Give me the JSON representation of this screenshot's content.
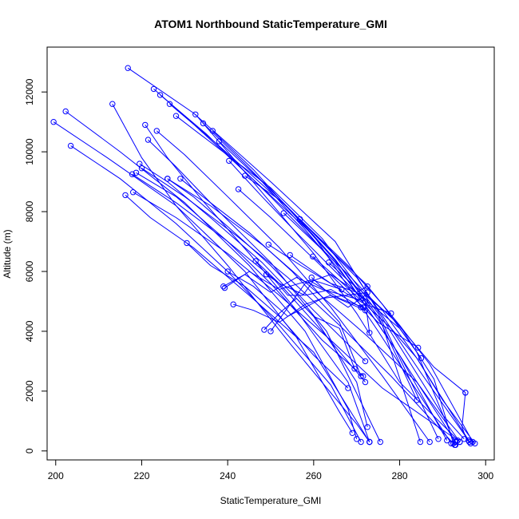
{
  "chart_data": {
    "type": "scatter",
    "title": "ATOM1 Northbound StaticTemperature_GMI",
    "xlabel": "StaticTemperature_GMI",
    "ylabel": "Altitude (m)",
    "xlim": [
      198,
      302
    ],
    "ylim": [
      -300,
      13500
    ],
    "xticks": [
      200,
      220,
      240,
      260,
      280,
      300
    ],
    "yticks": [
      0,
      2000,
      4000,
      6000,
      8000,
      10000,
      12000
    ],
    "grid": false,
    "legend": "none",
    "color": "#0000ff",
    "series": [
      {
        "x": [
          216.8,
          232,
          250,
          265,
          280,
          290,
          295
        ],
        "y": [
          12800,
          11300,
          9000,
          7000,
          3500,
          1200,
          400
        ]
      },
      {
        "x": [
          222.8,
          230,
          245,
          260,
          275,
          292
        ],
        "y": [
          12100,
          11200,
          9200,
          7200,
          4000,
          250
        ]
      },
      {
        "x": [
          224.3,
          235,
          250,
          265,
          280,
          293
        ],
        "y": [
          11900,
          10600,
          8500,
          6300,
          3200,
          300
        ]
      },
      {
        "x": [
          226.5,
          238,
          255,
          270,
          285,
          296
        ],
        "y": [
          11600,
          10200,
          8000,
          5800,
          2600,
          350
        ]
      },
      {
        "x": [
          213.2,
          220,
          228,
          240,
          255,
          270,
          273
        ],
        "y": [
          11600,
          9800,
          8200,
          6200,
          3500,
          900,
          300
        ]
      },
      {
        "x": [
          202.3,
          215,
          230,
          245,
          258,
          268,
          270
        ],
        "y": [
          11350,
          10000,
          8300,
          6200,
          4000,
          1400,
          400
        ]
      },
      {
        "x": [
          199.5,
          212,
          228,
          244,
          256,
          266,
          269
        ],
        "y": [
          11000,
          9800,
          8200,
          6000,
          3800,
          1300,
          600
        ]
      },
      {
        "x": [
          203.5,
          215,
          228,
          240,
          252,
          264,
          271
        ],
        "y": [
          10200,
          9100,
          7600,
          6000,
          4200,
          2200,
          300
        ]
      },
      {
        "x": [
          216.2,
          222,
          232,
          245,
          260,
          273
        ],
        "y": [
          8550,
          7800,
          6800,
          5200,
          3300,
          300
        ]
      },
      {
        "x": [
          220.8,
          226,
          234,
          245,
          256,
          268,
          273
        ],
        "y": [
          10900,
          9800,
          8400,
          6600,
          4700,
          2300,
          300
        ]
      },
      {
        "x": [
          221.5,
          228,
          238,
          250,
          263,
          275.5
        ],
        "y": [
          10400,
          9500,
          8000,
          6300,
          4000,
          300
        ]
      },
      {
        "x": [
          234.3,
          244,
          255,
          265,
          275,
          284
        ],
        "y": [
          10950,
          9600,
          8000,
          6400,
          4500,
          1700
        ]
      },
      {
        "x": [
          236.5,
          246,
          256,
          266,
          276,
          284.8
        ],
        "y": [
          10700,
          9400,
          7800,
          6200,
          4200,
          300
        ]
      },
      {
        "x": [
          238,
          248,
          258,
          268,
          280,
          291
        ],
        "y": [
          10350,
          9000,
          7400,
          5700,
          3200,
          350
        ]
      },
      {
        "x": [
          242.5,
          250,
          258,
          266,
          275,
          284.3
        ],
        "y": [
          8750,
          7800,
          6700,
          5600,
          4300,
          3450
        ]
      },
      {
        "x": [
          223.5,
          230,
          240,
          252,
          264,
          276,
          287
        ],
        "y": [
          10700,
          9900,
          8500,
          6800,
          4800,
          2500,
          300
        ]
      },
      {
        "x": [
          219.5,
          226,
          236,
          248,
          260,
          270,
          272.5
        ],
        "y": [
          9600,
          9000,
          7800,
          6300,
          4500,
          2300,
          800
        ]
      },
      {
        "x": [
          218.7,
          228,
          240,
          250,
          262,
          271.5
        ],
        "y": [
          9300,
          8500,
          7000,
          5600,
          3700,
          2500
        ]
      },
      {
        "x": [
          230.5,
          236,
          244,
          252,
          260,
          268
        ],
        "y": [
          6950,
          6200,
          5500,
          4500,
          3200,
          2100
        ]
      },
      {
        "x": [
          226,
          232,
          240,
          250,
          260,
          272
        ],
        "y": [
          9100,
          8500,
          7500,
          6200,
          4700,
          3000
        ]
      },
      {
        "x": [
          229,
          236,
          245,
          255,
          266,
          271
        ],
        "y": [
          9100,
          8300,
          7300,
          6000,
          4300,
          2500
        ]
      },
      {
        "x": [
          232.5,
          240,
          250,
          260,
          270,
          280,
          294
        ],
        "y": [
          11250,
          10000,
          8300,
          6600,
          4600,
          2300,
          300
        ]
      },
      {
        "x": [
          240.3,
          248,
          256,
          265,
          272,
          273
        ],
        "y": [
          9700,
          8500,
          7300,
          6000,
          5000,
          3950
        ]
      },
      {
        "x": [
          228,
          238,
          250,
          262,
          275,
          289
        ],
        "y": [
          11200,
          10100,
          8800,
          7100,
          4600,
          400
        ]
      },
      {
        "x": [
          254.5,
          260,
          266,
          272,
          278
        ],
        "y": [
          6550,
          6000,
          5400,
          4900,
          4600
        ]
      },
      {
        "x": [
          249.5,
          257,
          264,
          270,
          272.5
        ],
        "y": [
          6900,
          6200,
          5600,
          5300,
          5500
        ]
      },
      {
        "x": [
          239,
          244,
          250,
          256,
          262,
          272
        ],
        "y": [
          5500,
          5900,
          5300,
          5800,
          5400,
          5000
        ]
      },
      {
        "x": [
          239.3,
          245,
          252,
          259,
          266,
          271.5
        ],
        "y": [
          5450,
          6000,
          5400,
          5700,
          5100,
          4800
        ]
      },
      {
        "x": [
          246.5,
          252,
          258,
          264,
          271
        ],
        "y": [
          6350,
          5600,
          5200,
          5400,
          4800
        ]
      },
      {
        "x": [
          249,
          251,
          254,
          257.5,
          260,
          266.5
        ],
        "y": [
          5900,
          5700,
          5200,
          5200,
          5700,
          5400
        ]
      },
      {
        "x": [
          240,
          246,
          254,
          262,
          272.5
        ],
        "y": [
          6000,
          5500,
          4500,
          5100,
          5300
        ]
      },
      {
        "x": [
          241.3,
          246,
          252,
          258,
          264,
          272
        ],
        "y": [
          4900,
          4700,
          4300,
          4900,
          5200,
          4700
        ]
      },
      {
        "x": [
          248.5,
          252,
          256,
          260,
          266,
          269.5
        ],
        "y": [
          4050,
          4600,
          5100,
          4500,
          4100,
          2750
        ]
      },
      {
        "x": [
          250,
          258,
          264,
          270,
          275,
          280,
          285
        ],
        "y": [
          4000,
          5600,
          5900,
          5300,
          4700,
          4100,
          3100
        ]
      },
      {
        "x": [
          259.5,
          264,
          268,
          272,
          278,
          288,
          295.3
        ],
        "y": [
          5800,
          5200,
          4800,
          5200,
          4500,
          2800,
          1950
        ]
      },
      {
        "x": [
          295.3,
          294.5,
          295.5,
          296.2
        ],
        "y": [
          1950,
          800,
          400,
          300
        ]
      },
      {
        "x": [
          259.8,
          266,
          272,
          278,
          284,
          290,
          297.5
        ],
        "y": [
          6500,
          5700,
          4900,
          4100,
          3100,
          1700,
          250
        ]
      },
      {
        "x": [
          256.8,
          264,
          272,
          280,
          288,
          292.5
        ],
        "y": [
          7750,
          6700,
          5600,
          4200,
          2400,
          250
        ]
      },
      {
        "x": [
          253,
          260,
          268,
          276,
          284,
          296.5
        ],
        "y": [
          7950,
          7000,
          5900,
          4700,
          3100,
          250
        ]
      },
      {
        "x": [
          218,
          228,
          240,
          252,
          264,
          276,
          293.5
        ],
        "y": [
          8650,
          7800,
          6600,
          5200,
          3700,
          2100,
          350
        ]
      },
      {
        "x": [
          226,
          236,
          248,
          260,
          272,
          284,
          294
        ],
        "y": [
          9100,
          8200,
          6900,
          5400,
          3900,
          2300,
          300
        ]
      },
      {
        "x": [
          220,
          230,
          242,
          254,
          266,
          278,
          292.8
        ],
        "y": [
          9450,
          8500,
          7200,
          5800,
          4200,
          2500,
          200
        ]
      },
      {
        "x": [
          217.8,
          228,
          240,
          252,
          262,
          272
        ],
        "y": [
          9250,
          8300,
          7000,
          5600,
          4000,
          2300
        ]
      },
      {
        "x": [
          244,
          252,
          260,
          268,
          276,
          284,
          293
        ],
        "y": [
          9200,
          8400,
          7300,
          6200,
          4900,
          3300,
          200
        ]
      },
      {
        "x": [
          263.5,
          268,
          274,
          280,
          287,
          297
        ],
        "y": [
          6300,
          5700,
          5000,
          4200,
          2900,
          300
        ]
      }
    ]
  }
}
